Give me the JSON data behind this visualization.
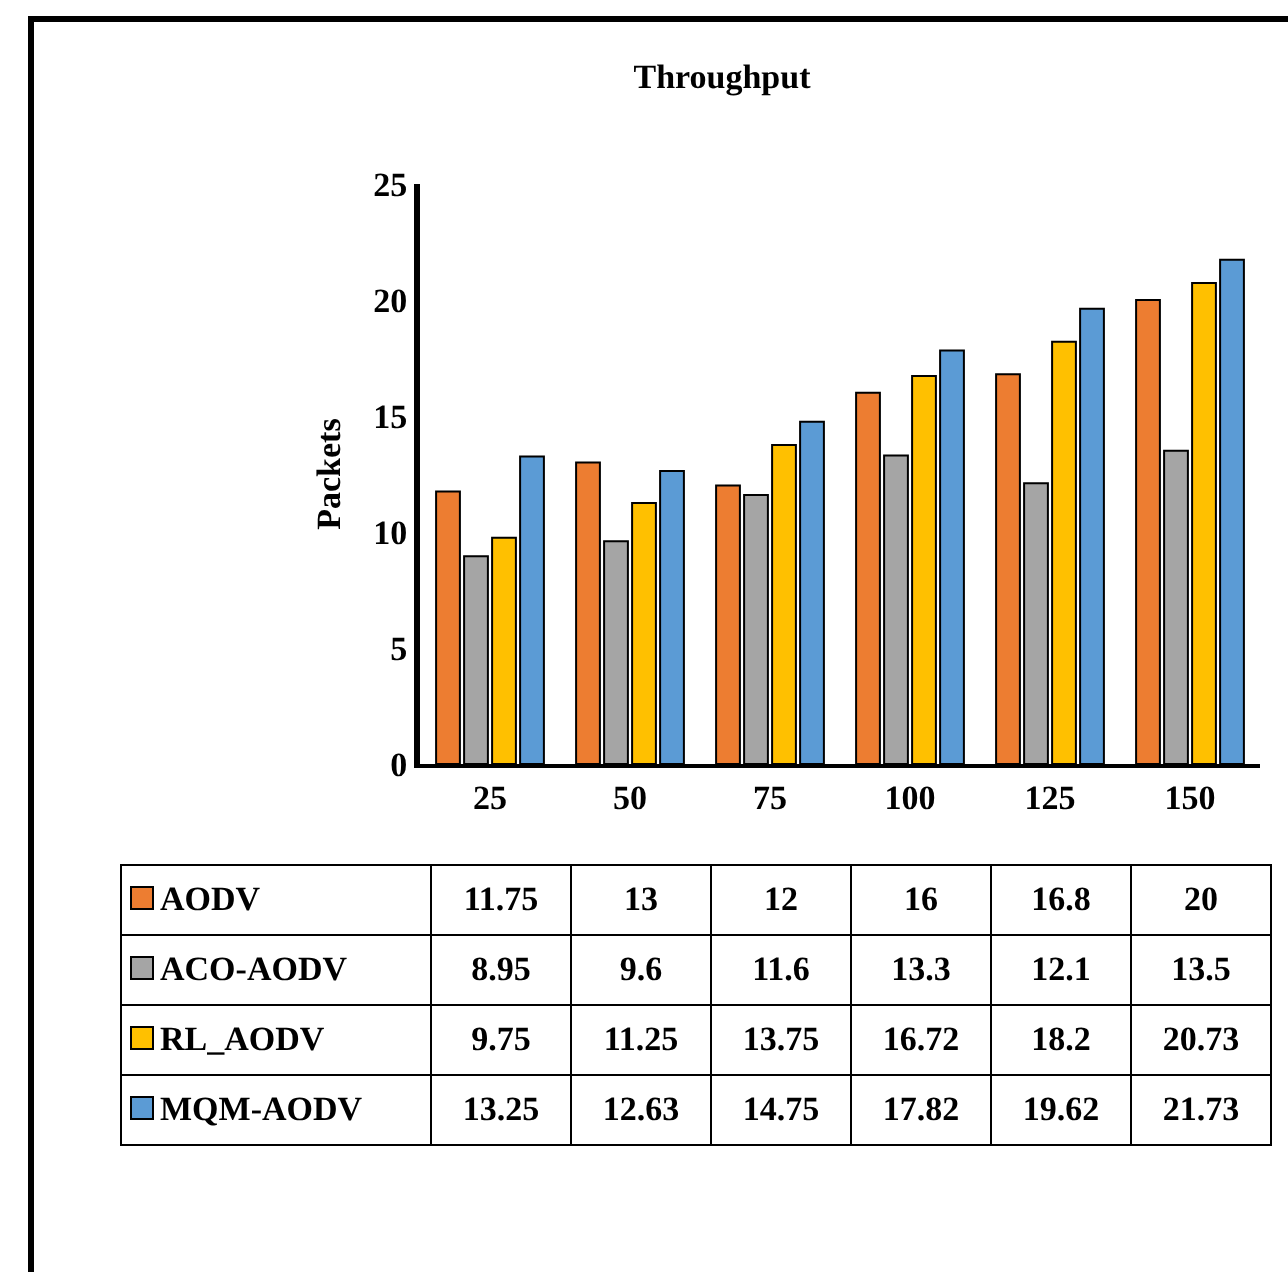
{
  "chart_data": {
    "type": "bar",
    "title": "Throughput",
    "ylabel": "Packets",
    "categories": [
      "25",
      "50",
      "75",
      "100",
      "125",
      "150"
    ],
    "series": [
      {
        "name": "AODV",
        "color": "#ed7d31",
        "values": [
          11.75,
          13,
          12,
          16,
          16.8,
          20
        ]
      },
      {
        "name": "ACO-AODV",
        "color": "#a5a5a5",
        "values": [
          8.95,
          9.6,
          11.6,
          13.3,
          12.1,
          13.5
        ]
      },
      {
        "name": "RL_AODV",
        "color": "#ffc000",
        "values": [
          9.75,
          11.25,
          13.75,
          16.72,
          18.2,
          20.73
        ]
      },
      {
        "name": "MQM-AODV",
        "color": "#5b9bd5",
        "values": [
          13.25,
          12.63,
          14.75,
          17.82,
          19.62,
          21.73
        ]
      }
    ],
    "ylim": [
      0,
      25
    ],
    "yticks": [
      0,
      5,
      10,
      15,
      20,
      25
    ],
    "grid": false,
    "legend": "bottom",
    "data_labels": true
  }
}
